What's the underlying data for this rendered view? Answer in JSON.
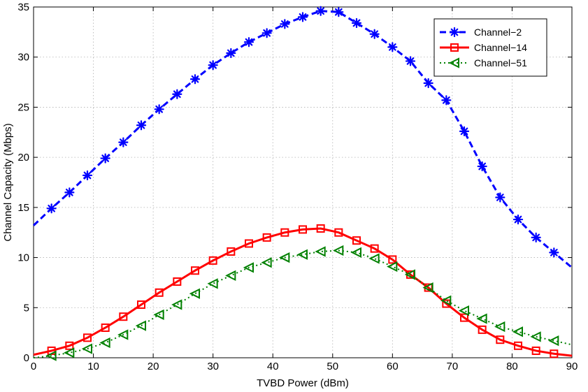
{
  "chart_data": {
    "type": "line",
    "title": "",
    "xlabel": "TVBD Power (dBm)",
    "ylabel": "Channel Capacity (Mbps)",
    "xlim": [
      0,
      90
    ],
    "ylim": [
      0,
      35
    ],
    "xticks": [
      0,
      10,
      20,
      30,
      40,
      50,
      60,
      70,
      80,
      90
    ],
    "yticks": [
      0,
      5,
      10,
      15,
      20,
      25,
      30,
      35
    ],
    "grid": true,
    "legend_position": "top-right",
    "series": [
      {
        "name": "Channel−2",
        "color": "#0000ff",
        "line_style": "dashed",
        "marker": "asterisk",
        "x": [
          0,
          3,
          6,
          9,
          12,
          15,
          18,
          21,
          24,
          27,
          30,
          33,
          36,
          39,
          42,
          45,
          48,
          51,
          54,
          57,
          60,
          63,
          66,
          69,
          72,
          75,
          78,
          81,
          84,
          87,
          90
        ],
        "y": [
          13.2,
          14.9,
          16.5,
          18.2,
          19.9,
          21.5,
          23.2,
          24.8,
          26.3,
          27.8,
          29.2,
          30.4,
          31.5,
          32.4,
          33.3,
          34.0,
          34.6,
          34.5,
          33.4,
          32.3,
          31.0,
          29.6,
          27.4,
          25.7,
          22.6,
          19.1,
          16.0,
          13.8,
          12.0,
          10.5,
          9.0
        ],
        "marker_from": 1,
        "marker_to": 29
      },
      {
        "name": "Channel−14",
        "color": "#ff0000",
        "line_style": "solid",
        "marker": "square",
        "x": [
          0,
          3,
          6,
          9,
          12,
          15,
          18,
          21,
          24,
          27,
          30,
          33,
          36,
          39,
          42,
          45,
          48,
          51,
          54,
          57,
          60,
          63,
          66,
          69,
          72,
          75,
          78,
          81,
          84,
          87,
          90
        ],
        "y": [
          0.3,
          0.7,
          1.2,
          2.0,
          3.0,
          4.1,
          5.3,
          6.5,
          7.6,
          8.7,
          9.7,
          10.6,
          11.4,
          12.0,
          12.5,
          12.8,
          12.9,
          12.5,
          11.7,
          10.9,
          9.8,
          8.3,
          7.0,
          5.4,
          4.0,
          2.8,
          1.8,
          1.2,
          0.7,
          0.4,
          0.2
        ],
        "marker_from": 1,
        "marker_to": 29
      },
      {
        "name": "Channel−51",
        "color": "#008000",
        "line_style": "dotted",
        "marker": "triangle-left",
        "x": [
          0,
          3,
          6,
          9,
          12,
          15,
          18,
          21,
          24,
          27,
          30,
          33,
          36,
          39,
          42,
          45,
          48,
          51,
          54,
          57,
          60,
          63,
          66,
          69,
          72,
          75,
          78,
          81,
          84,
          87,
          90
        ],
        "y": [
          0.0,
          0.2,
          0.5,
          0.9,
          1.5,
          2.3,
          3.2,
          4.3,
          5.3,
          6.4,
          7.4,
          8.2,
          9.0,
          9.5,
          10.0,
          10.3,
          10.6,
          10.7,
          10.5,
          9.9,
          9.1,
          8.3,
          7.0,
          5.7,
          4.7,
          3.9,
          3.1,
          2.6,
          2.1,
          1.7,
          1.3
        ],
        "marker_from": 1,
        "marker_to": 29
      }
    ]
  }
}
